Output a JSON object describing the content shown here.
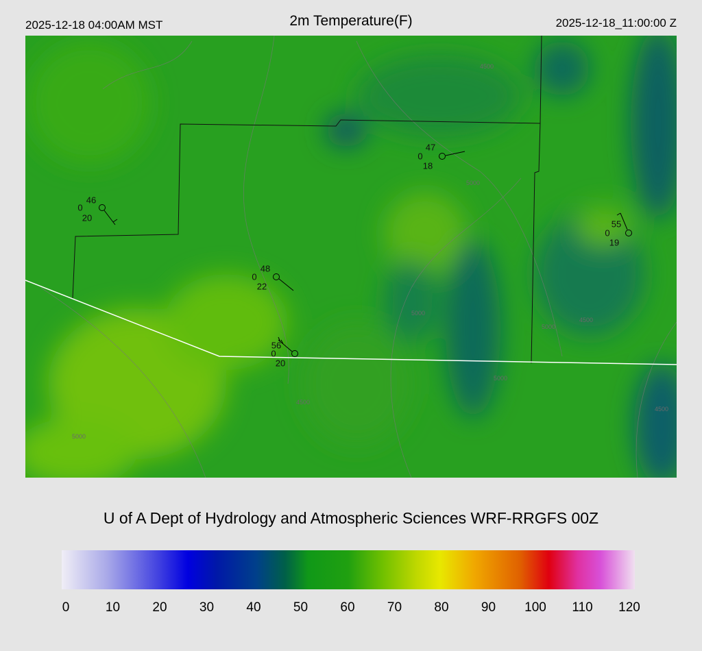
{
  "header": {
    "local_time": "2025-12-18 04:00AM MST",
    "title": "2m Temperature(F)",
    "utc_time": "2025-12-18_11:00:00 Z"
  },
  "map": {
    "stations": [
      {
        "temperature": 46,
        "code": 0,
        "dewpoint": 20
      },
      {
        "temperature": 47,
        "code": 0,
        "dewpoint": 18
      },
      {
        "temperature": 55,
        "code": 0,
        "dewpoint": 19
      },
      {
        "temperature": 48,
        "code": 0,
        "dewpoint": 22
      },
      {
        "temperature": 56,
        "code": 0,
        "dewpoint": 20
      }
    ],
    "contour_labels": [
      "4500",
      "5000",
      "5000",
      "4500",
      "5000",
      "4500",
      "5000",
      "5000",
      "4500"
    ]
  },
  "credit": "U of A Dept of Hydrology and Atmospheric Sciences WRF-RRGFS 00Z",
  "colorbar": {
    "ticks": [
      0,
      10,
      20,
      30,
      40,
      50,
      60,
      70,
      80,
      90,
      100,
      110,
      120
    ]
  }
}
